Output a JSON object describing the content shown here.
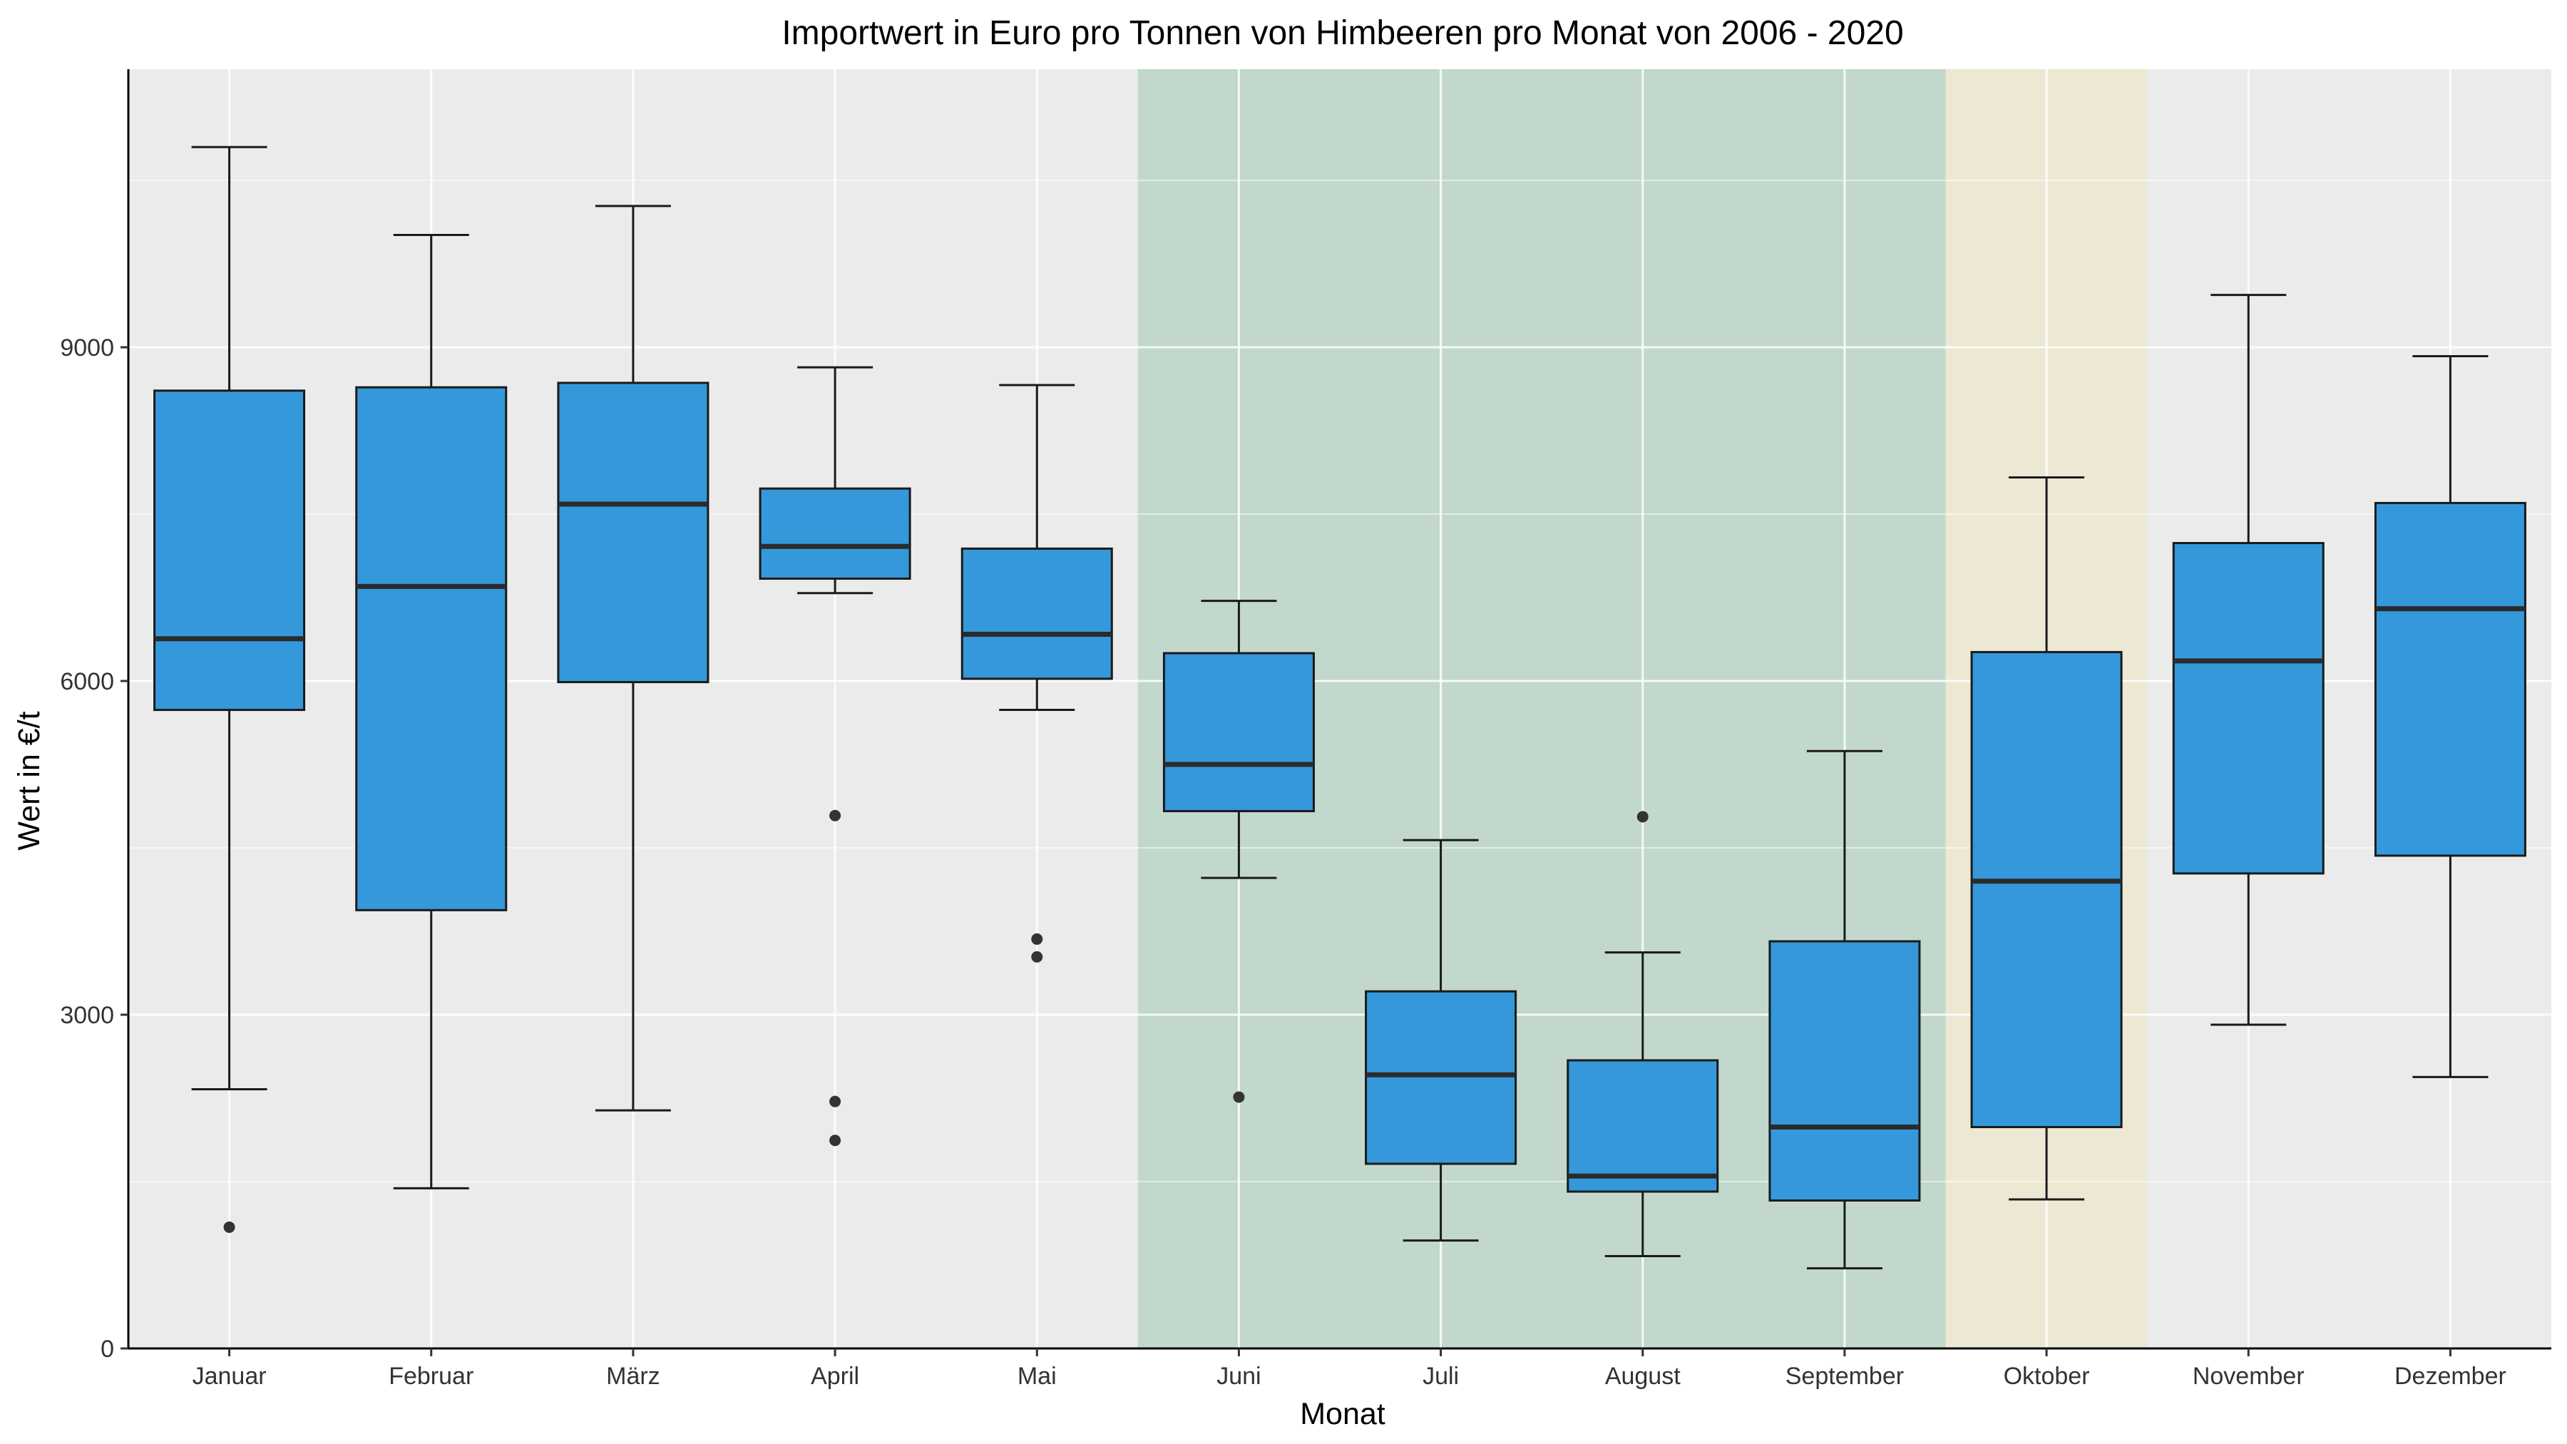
{
  "chart_data": {
    "type": "boxplot",
    "title": "Importwert in Euro pro Tonnen von Himbeeren pro Monat von 2006 - 2020",
    "xlabel": "Monat",
    "ylabel": "Wert in €/t",
    "ylim": [
      0,
      11500
    ],
    "yticks": [
      0,
      3000,
      6000,
      9000
    ],
    "ytick_labels": [
      "0",
      "3000",
      "6000",
      "9000"
    ],
    "grid": true,
    "colors": {
      "panel": "#ebebeb",
      "grid": "#ffffff",
      "box_fill": "#3498db",
      "box_line": "#1a1a1a",
      "highlight_summer": "#c2d8cc",
      "highlight_october": "#ece8d4"
    },
    "highlights": [
      {
        "from": "Juni",
        "to": "September",
        "color": "#c2d8cc"
      },
      {
        "from": "Oktober",
        "to": "Oktober",
        "color": "#ece8d4"
      }
    ],
    "categories": [
      "Januar",
      "Februar",
      "März",
      "April",
      "Mai",
      "Juni",
      "Juli",
      "August",
      "September",
      "Oktober",
      "November",
      "Dezember"
    ],
    "boxes": [
      {
        "category": "Januar",
        "whisker_low": 2330,
        "q1": 5740,
        "median": 6380,
        "q3": 8610,
        "whisker_high": 10800,
        "outliers": [
          1090
        ]
      },
      {
        "category": "Februar",
        "whisker_low": 1440,
        "q1": 3940,
        "median": 6850,
        "q3": 8640,
        "whisker_high": 10010,
        "outliers": []
      },
      {
        "category": "März",
        "whisker_low": 2140,
        "q1": 5990,
        "median": 7590,
        "q3": 8680,
        "whisker_high": 10270,
        "outliers": []
      },
      {
        "category": "April",
        "whisker_low": 6790,
        "q1": 6920,
        "median": 7210,
        "q3": 7730,
        "whisker_high": 8820,
        "outliers": [
          4790,
          2220,
          1870
        ]
      },
      {
        "category": "Mai",
        "whisker_low": 5740,
        "q1": 6020,
        "median": 6420,
        "q3": 7190,
        "whisker_high": 8660,
        "outliers": [
          3680,
          3520
        ]
      },
      {
        "category": "Juni",
        "whisker_low": 4230,
        "q1": 4830,
        "median": 5250,
        "q3": 6250,
        "whisker_high": 6720,
        "outliers": [
          2260
        ]
      },
      {
        "category": "Juli",
        "whisker_low": 970,
        "q1": 1660,
        "median": 2460,
        "q3": 3210,
        "whisker_high": 4570,
        "outliers": []
      },
      {
        "category": "August",
        "whisker_low": 830,
        "q1": 1410,
        "median": 1550,
        "q3": 2590,
        "whisker_high": 3560,
        "outliers": [
          4780
        ]
      },
      {
        "category": "September",
        "whisker_low": 720,
        "q1": 1330,
        "median": 1990,
        "q3": 3660,
        "whisker_high": 5370,
        "outliers": []
      },
      {
        "category": "Oktober",
        "whisker_low": 1340,
        "q1": 1990,
        "median": 4200,
        "q3": 6260,
        "whisker_high": 7830,
        "outliers": []
      },
      {
        "category": "November",
        "whisker_low": 2910,
        "q1": 4270,
        "median": 6180,
        "q3": 7240,
        "whisker_high": 9470,
        "outliers": []
      },
      {
        "category": "Dezember",
        "whisker_low": 2440,
        "q1": 4430,
        "median": 6650,
        "q3": 7600,
        "whisker_high": 8920,
        "outliers": []
      }
    ]
  }
}
